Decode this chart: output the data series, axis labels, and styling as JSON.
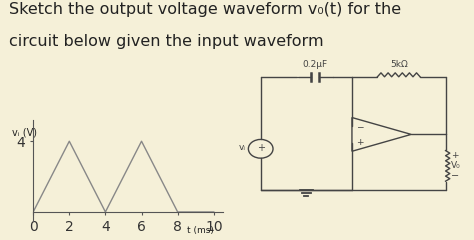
{
  "title_line1": "Sketch the output voltage waveform v₀(t) for the",
  "title_line2": "circuit below given the input waveform",
  "title_fontsize": 11.5,
  "bg_color": "#f5f0d8",
  "text_color": "#222222",
  "circuit_color": "#444444",
  "waveform": {
    "x": [
      0,
      2,
      4,
      6,
      8,
      10
    ],
    "y": [
      0,
      4,
      0,
      4,
      0,
      0
    ],
    "ylabel": "vᵢ (V)",
    "xlabel": "t (ms)",
    "xticks": [
      0,
      2,
      4,
      6,
      8,
      10
    ],
    "ytick_val": 4,
    "ymax": 5.2,
    "xmax": 10.5,
    "line_color": "#888888",
    "linewidth": 1.0
  },
  "circuit": {
    "cap_label": "0.2μF",
    "res_label": "5kΩ",
    "vo_label": "V₀",
    "vi_label": "vᵢ"
  }
}
